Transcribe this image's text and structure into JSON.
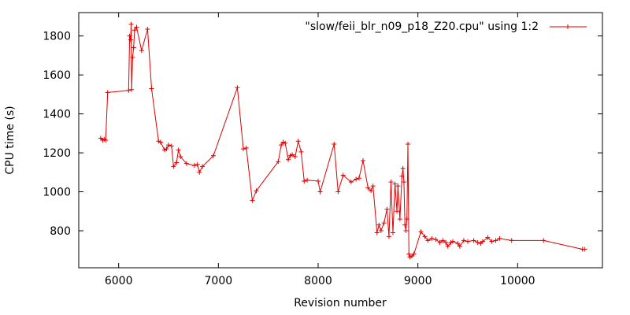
{
  "chart_data": {
    "type": "line",
    "xlabel": "Revision number",
    "ylabel": "CPU time (s)",
    "xlim": [
      5600,
      10850
    ],
    "ylim": [
      610,
      1920
    ],
    "x_ticks": [
      6000,
      7000,
      8000,
      9000,
      10000
    ],
    "y_ticks": [
      800,
      1000,
      1200,
      1400,
      1600,
      1800
    ],
    "grid": false,
    "legend_position": "top-right",
    "color": "#e00000",
    "marker": "plus",
    "series": [
      {
        "name": "\"slow/feii_blr_n09_p18_Z20.cpu\" using 1:2",
        "x": [
          5820,
          5840,
          5855,
          5870,
          5890,
          6100,
          6110,
          6120,
          6125,
          6130,
          6140,
          6150,
          6160,
          6180,
          6230,
          6290,
          6330,
          6400,
          6420,
          6460,
          6480,
          6500,
          6530,
          6550,
          6580,
          6600,
          6620,
          6680,
          6760,
          6790,
          6810,
          6840,
          6950,
          7190,
          7250,
          7280,
          7340,
          7380,
          7600,
          7630,
          7650,
          7670,
          7700,
          7720,
          7740,
          7770,
          7800,
          7830,
          7860,
          7890,
          8000,
          8020,
          8160,
          8200,
          8250,
          8330,
          8380,
          8410,
          8450,
          8500,
          8530,
          8550,
          8590,
          8610,
          8630,
          8660,
          8690,
          8710,
          8730,
          8750,
          8770,
          8790,
          8800,
          8820,
          8840,
          8850,
          8860,
          8870,
          8880,
          8890,
          8900,
          8910,
          8920,
          8940,
          8960,
          9030,
          9070,
          9100,
          9140,
          9180,
          9220,
          9250,
          9280,
          9300,
          9330,
          9350,
          9400,
          9420,
          9460,
          9500,
          9560,
          9600,
          9630,
          9650,
          9700,
          9740,
          9780,
          9820,
          9940,
          10260,
          10650,
          10670
        ],
        "values": [
          1275,
          1265,
          1270,
          1265,
          1510,
          1520,
          1800,
          1780,
          1860,
          1525,
          1690,
          1740,
          1830,
          1845,
          1725,
          1835,
          1530,
          1260,
          1255,
          1215,
          1220,
          1240,
          1235,
          1130,
          1150,
          1215,
          1180,
          1145,
          1135,
          1140,
          1100,
          1130,
          1185,
          1535,
          1220,
          1225,
          955,
          1005,
          1155,
          1240,
          1255,
          1250,
          1165,
          1185,
          1190,
          1180,
          1260,
          1205,
          1055,
          1060,
          1055,
          1000,
          1245,
          1000,
          1085,
          1050,
          1065,
          1070,
          1160,
          1020,
          1005,
          1030,
          790,
          830,
          800,
          840,
          910,
          770,
          1050,
          790,
          1040,
          900,
          1030,
          860,
          1080,
          1120,
          1050,
          830,
          800,
          860,
          1245,
          680,
          665,
          670,
          680,
          795,
          770,
          750,
          760,
          755,
          740,
          750,
          740,
          720,
          740,
          745,
          735,
          720,
          750,
          745,
          750,
          740,
          735,
          745,
          765,
          745,
          750,
          760,
          750,
          750,
          705,
          705
        ]
      }
    ]
  }
}
